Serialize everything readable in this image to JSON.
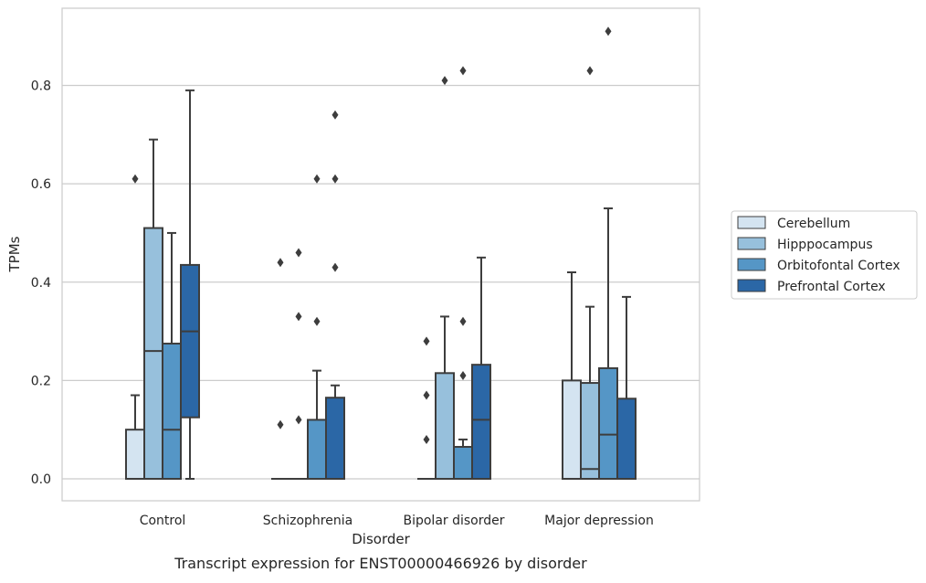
{
  "caption": "Transcript expression for ENST00000466926 by disorder",
  "chart_data": {
    "type": "boxplot",
    "title": "",
    "xlabel": "Disorder",
    "ylabel": "TPMs",
    "ylim": [
      -0.045,
      0.96
    ],
    "yticks": [
      0.0,
      0.2,
      0.4,
      0.6,
      0.8
    ],
    "ytick_labels": [
      "0.0",
      "0.2",
      "0.4",
      "0.6",
      "0.8"
    ],
    "grid": "horizontal",
    "legend_position": "right",
    "categories": [
      "Control",
      "Schizophrenia",
      "Bipolar disorder",
      "Major depression"
    ],
    "series": [
      {
        "name": "Cerebellum",
        "color": "#d4e4f1",
        "boxes": [
          {
            "whislo": 0.0,
            "q1": 0.0,
            "med": 0.0,
            "q3": 0.1,
            "whishi": 0.17,
            "fliers": [
              0.61
            ]
          },
          {
            "whislo": 0.0,
            "q1": 0.0,
            "med": 0.0,
            "q3": 0.0,
            "whishi": 0.0,
            "fliers": [
              0.11,
              0.44
            ]
          },
          {
            "whislo": 0.0,
            "q1": 0.0,
            "med": 0.0,
            "q3": 0.0,
            "whishi": 0.0,
            "fliers": [
              0.08,
              0.17,
              0.28
            ]
          },
          {
            "whislo": 0.0,
            "q1": 0.0,
            "med": 0.0,
            "q3": 0.2,
            "whishi": 0.42,
            "fliers": []
          }
        ]
      },
      {
        "name": "Hipppocampus",
        "color": "#97c0dc",
        "boxes": [
          {
            "whislo": 0.0,
            "q1": 0.0,
            "med": 0.26,
            "q3": 0.51,
            "whishi": 0.69,
            "fliers": []
          },
          {
            "whislo": 0.0,
            "q1": 0.0,
            "med": 0.0,
            "q3": 0.0,
            "whishi": 0.0,
            "fliers": [
              0.12,
              0.33,
              0.46
            ]
          },
          {
            "whislo": 0.0,
            "q1": 0.0,
            "med": 0.0,
            "q3": 0.215,
            "whishi": 0.33,
            "fliers": [
              0.81
            ]
          },
          {
            "whislo": 0.0,
            "q1": 0.0,
            "med": 0.02,
            "q3": 0.195,
            "whishi": 0.35,
            "fliers": [
              0.83
            ]
          }
        ]
      },
      {
        "name": "Orbitofontal Cortex",
        "color": "#5596c6",
        "boxes": [
          {
            "whislo": 0.0,
            "q1": 0.0,
            "med": 0.1,
            "q3": 0.275,
            "whishi": 0.5,
            "fliers": []
          },
          {
            "whislo": 0.0,
            "q1": 0.0,
            "med": 0.0,
            "q3": 0.12,
            "whishi": 0.22,
            "fliers": [
              0.32,
              0.61
            ]
          },
          {
            "whislo": 0.0,
            "q1": 0.0,
            "med": 0.0,
            "q3": 0.065,
            "whishi": 0.08,
            "fliers": [
              0.21,
              0.32,
              0.83
            ]
          },
          {
            "whislo": 0.0,
            "q1": 0.0,
            "med": 0.09,
            "q3": 0.225,
            "whishi": 0.55,
            "fliers": [
              0.91
            ]
          }
        ]
      },
      {
        "name": "Prefrontal Cortex",
        "color": "#2b67a6",
        "boxes": [
          {
            "whislo": 0.0,
            "q1": 0.125,
            "med": 0.3,
            "q3": 0.435,
            "whishi": 0.79,
            "fliers": []
          },
          {
            "whislo": 0.0,
            "q1": 0.0,
            "med": 0.0,
            "q3": 0.165,
            "whishi": 0.19,
            "fliers": [
              0.43,
              0.61,
              0.74
            ]
          },
          {
            "whislo": 0.0,
            "q1": 0.0,
            "med": 0.12,
            "q3": 0.232,
            "whishi": 0.45,
            "fliers": []
          },
          {
            "whislo": 0.0,
            "q1": 0.0,
            "med": 0.0,
            "q3": 0.163,
            "whishi": 0.37,
            "fliers": []
          }
        ]
      }
    ]
  }
}
